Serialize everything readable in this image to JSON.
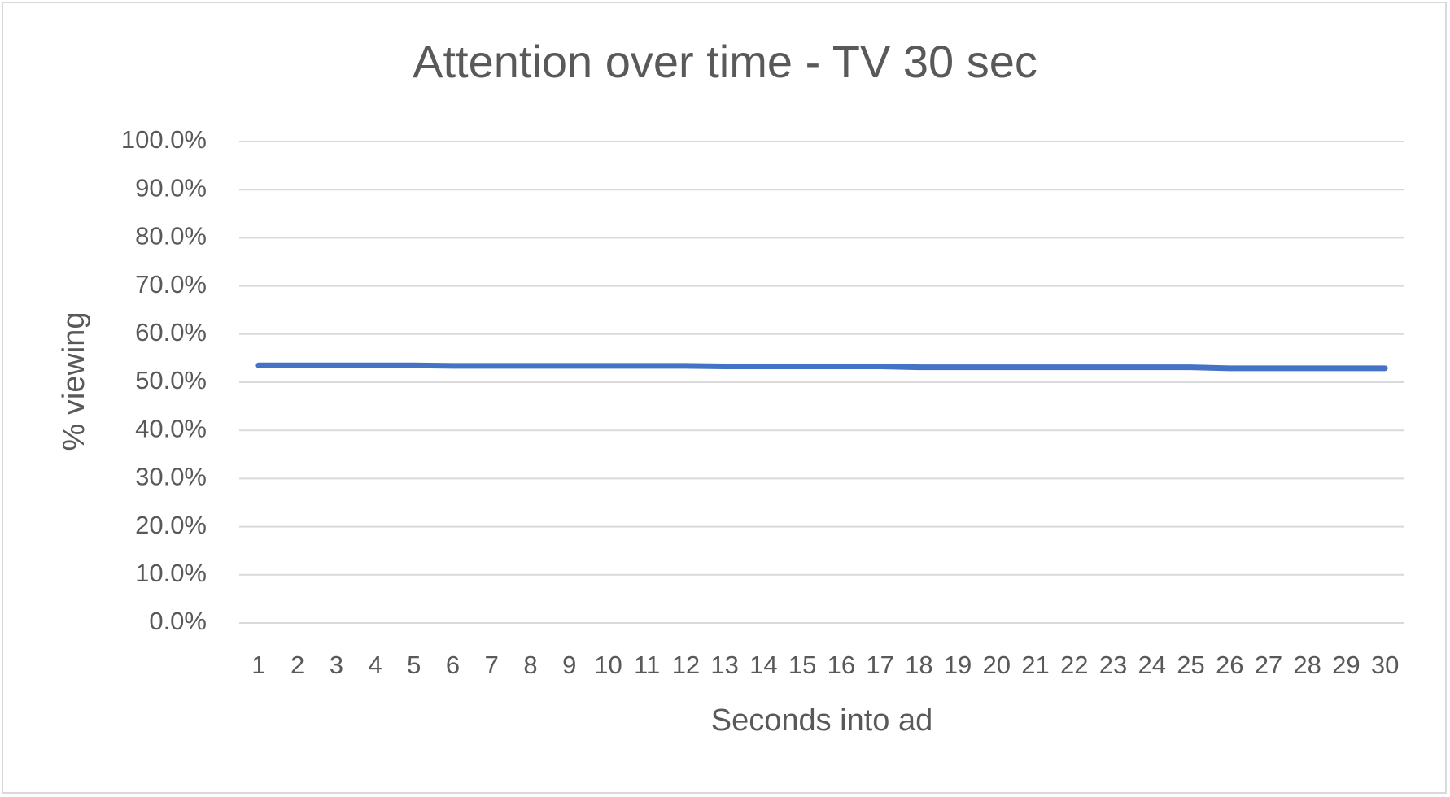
{
  "chart_data": {
    "type": "line",
    "title": "Attention over time - TV 30 sec",
    "x_label": "Seconds into ad",
    "y_label": "% viewing",
    "categories": [
      "1",
      "2",
      "3",
      "4",
      "5",
      "6",
      "7",
      "8",
      "9",
      "10",
      "11",
      "12",
      "13",
      "14",
      "15",
      "16",
      "17",
      "18",
      "19",
      "20",
      "21",
      "22",
      "23",
      "24",
      "25",
      "26",
      "27",
      "28",
      "29",
      "30"
    ],
    "series": [
      {
        "name": "% viewing",
        "color": "#4472c4",
        "values": [
          53.5,
          53.5,
          53.5,
          53.5,
          53.5,
          53.4,
          53.4,
          53.4,
          53.4,
          53.4,
          53.4,
          53.4,
          53.3,
          53.3,
          53.3,
          53.3,
          53.3,
          53.1,
          53.1,
          53.1,
          53.1,
          53.1,
          53.1,
          53.1,
          53.1,
          52.9,
          52.9,
          52.9,
          52.9,
          52.9
        ]
      }
    ],
    "ylim": [
      0,
      100
    ],
    "yticks": [
      {
        "value": 0,
        "label": "0.0%"
      },
      {
        "value": 10,
        "label": "10.0%"
      },
      {
        "value": 20,
        "label": "20.0%"
      },
      {
        "value": 30,
        "label": "30.0%"
      },
      {
        "value": 40,
        "label": "40.0%"
      },
      {
        "value": 50,
        "label": "50.0%"
      },
      {
        "value": 60,
        "label": "60.0%"
      },
      {
        "value": 70,
        "label": "70.0%"
      },
      {
        "value": 80,
        "label": "80.0%"
      },
      {
        "value": 90,
        "label": "90.0%"
      },
      {
        "value": 100,
        "label": "100.0%"
      }
    ],
    "grid": true
  }
}
